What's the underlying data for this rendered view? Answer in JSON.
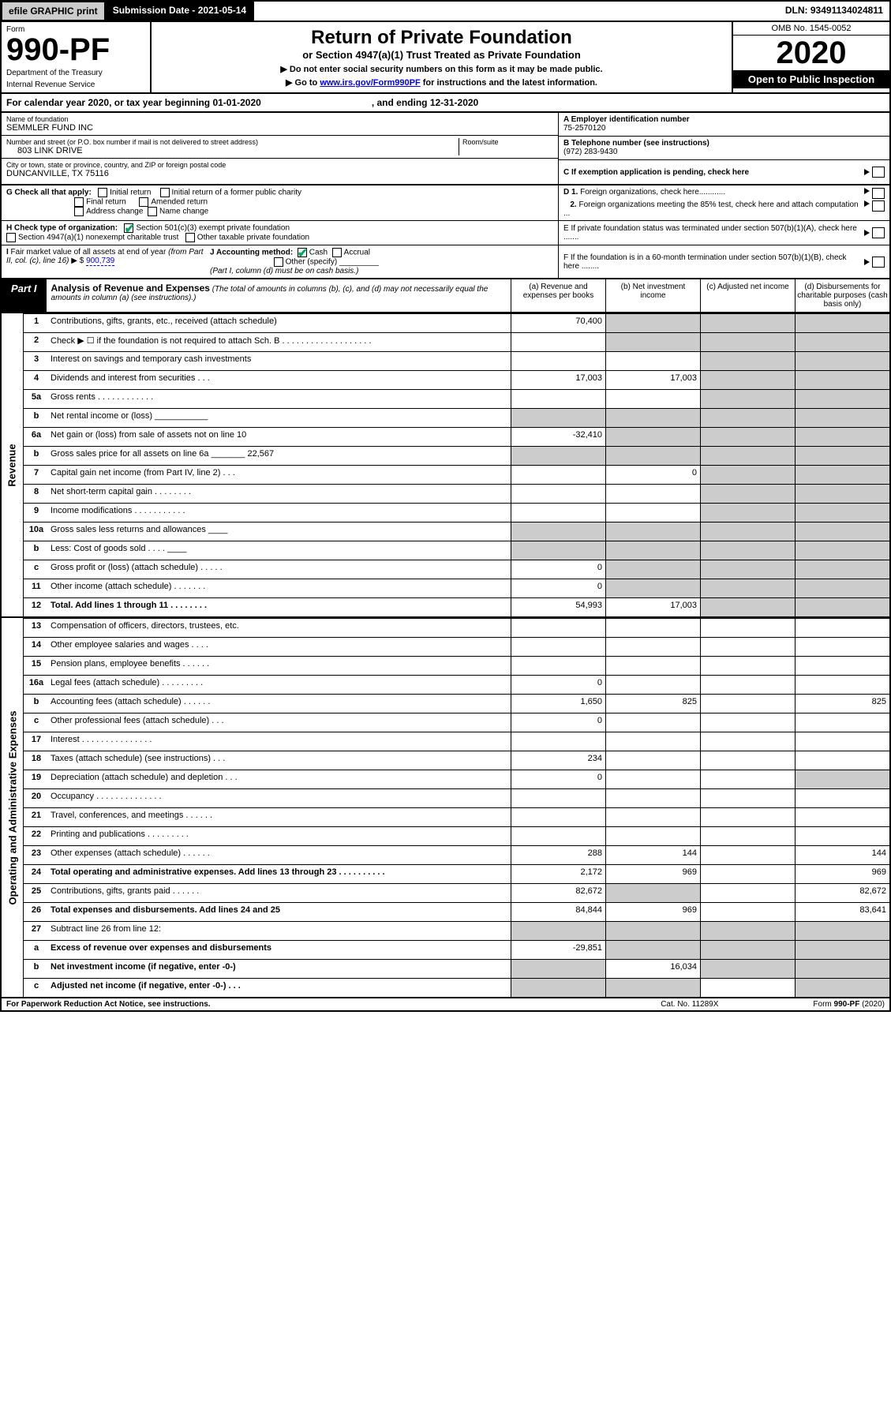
{
  "topbar": {
    "efile": "efile GRAPHIC print",
    "subdate_label": "Submission Date - 2021-05-14",
    "dln": "DLN: 93491134024811"
  },
  "header": {
    "form_word": "Form",
    "form_num": "990-PF",
    "dept": "Department of the Treasury",
    "irs": "Internal Revenue Service",
    "title": "Return of Private Foundation",
    "subtitle": "or Section 4947(a)(1) Trust Treated as Private Foundation",
    "note1": "▶ Do not enter social security numbers on this form as it may be made public.",
    "note2_pre": "▶ Go to ",
    "note2_link": "www.irs.gov/Form990PF",
    "note2_post": " for instructions and the latest information.",
    "omb": "OMB No. 1545-0052",
    "year": "2020",
    "open": "Open to Public Inspection"
  },
  "calyear": {
    "left": "For calendar year 2020, or tax year beginning 01-01-2020",
    "right": ", and ending 12-31-2020"
  },
  "id": {
    "name_lbl": "Name of foundation",
    "name": "SEMMLER FUND INC",
    "addr_lbl": "Number and street (or P.O. box number if mail is not delivered to street address)",
    "addr": "803 LINK DRIVE",
    "room_lbl": "Room/suite",
    "city_lbl": "City or town, state or province, country, and ZIP or foreign postal code",
    "city": "DUNCANVILLE, TX  75116",
    "ein_lbl": "A Employer identification number",
    "ein": "75-2570120",
    "tel_lbl": "B Telephone number (see instructions)",
    "tel": "(972) 283-9430",
    "c_lbl": "C If exemption application is pending, check here"
  },
  "checks": {
    "g": "G Check all that apply:",
    "initial": "Initial return",
    "initial_former": "Initial return of a former public charity",
    "final": "Final return",
    "amended": "Amended return",
    "addr_change": "Address change",
    "name_change": "Name change",
    "h": "H Check type of organization:",
    "sec501": "Section 501(c)(3) exempt private foundation",
    "sec4947": "Section 4947(a)(1) nonexempt charitable trust",
    "other_tax": "Other taxable private foundation",
    "d1": "D 1. Foreign organizations, check here............",
    "d2": "2. Foreign organizations meeting the 85% test, check here and attach computation ...",
    "e": "E  If private foundation status was terminated under section 507(b)(1)(A), check here .......",
    "i": "I Fair market value of all assets at end of year (from Part II, col. (c), line 16) ▶ $",
    "i_val": "900,739",
    "j": "J Accounting method:",
    "cash": "Cash",
    "accrual": "Accrual",
    "other_spec": "Other (specify)",
    "j_note": "(Part I, column (d) must be on cash basis.)",
    "f": "F  If the foundation is in a 60-month termination under section 507(b)(1)(B), check here ........"
  },
  "part1": {
    "tag": "Part I",
    "title": "Analysis of Revenue and Expenses",
    "note": "(The total of amounts in columns (b), (c), and (d) may not necessarily equal the amounts in column (a) (see instructions).)",
    "col_a": "(a)    Revenue and expenses per books",
    "col_b": "(b)   Net investment income",
    "col_c": "(c)   Adjusted net income",
    "col_d": "(d)   Disbursements for charitable purposes (cash basis only)"
  },
  "revenue_label": "Revenue",
  "expense_label": "Operating and Administrative Expenses",
  "rows": {
    "r1": {
      "n": "1",
      "d": "Contributions, gifts, grants, etc., received (attach schedule)",
      "a": "70,400"
    },
    "r2": {
      "n": "2",
      "d": "Check ▶ ☐ if the foundation is not required to attach Sch. B  . . . . . . . . . . . . . . . . . . ."
    },
    "r3": {
      "n": "3",
      "d": "Interest on savings and temporary cash investments"
    },
    "r4": {
      "n": "4",
      "d": "Dividends and interest from securities  .  .  .",
      "a": "17,003",
      "b": "17,003"
    },
    "r5a": {
      "n": "5a",
      "d": "Gross rents  . . . . . . . . . . . ."
    },
    "r5b": {
      "n": "b",
      "d": "Net rental income or (loss)  ___________"
    },
    "r6a": {
      "n": "6a",
      "d": "Net gain or (loss) from sale of assets not on line 10",
      "a": "-32,410"
    },
    "r6b": {
      "n": "b",
      "d": "Gross sales price for all assets on line 6a _______ 22,567"
    },
    "r7": {
      "n": "7",
      "d": "Capital gain net income (from Part IV, line 2)  .  .  .",
      "b": "0"
    },
    "r8": {
      "n": "8",
      "d": "Net short-term capital gain  . . . . . . . ."
    },
    "r9": {
      "n": "9",
      "d": "Income modifications  . . . . . . . . . . ."
    },
    "r10a": {
      "n": "10a",
      "d": "Gross sales less returns and allowances  ____"
    },
    "r10b": {
      "n": "b",
      "d": "Less: Cost of goods sold   .  .  .  .  ____"
    },
    "r10c": {
      "n": "c",
      "d": "Gross profit or (loss) (attach schedule)  .  .  .  .  .",
      "a": "0"
    },
    "r11": {
      "n": "11",
      "d": "Other income (attach schedule)  .  .  .  .  .  .  .",
      "a": "0"
    },
    "r12": {
      "n": "12",
      "d": "Total. Add lines 1 through 11  .  .  .  .  .  .  .  .",
      "a": "54,993",
      "b": "17,003"
    },
    "r13": {
      "n": "13",
      "d": "Compensation of officers, directors, trustees, etc."
    },
    "r14": {
      "n": "14",
      "d": "Other employee salaries and wages   .  .  .  ."
    },
    "r15": {
      "n": "15",
      "d": "Pension plans, employee benefits  .  .  .  .  .  ."
    },
    "r16a": {
      "n": "16a",
      "d": "Legal fees (attach schedule)  . . . . . . . . .",
      "a": "0"
    },
    "r16b": {
      "n": "b",
      "d": "Accounting fees (attach schedule)  .  .  .  .  .  .",
      "a": "1,650",
      "b": "825",
      "dd": "825"
    },
    "r16c": {
      "n": "c",
      "d": "Other professional fees (attach schedule)   .  .  .",
      "a": "0"
    },
    "r17": {
      "n": "17",
      "d": "Interest  . . . . . . . . . . . . . . ."
    },
    "r18": {
      "n": "18",
      "d": "Taxes (attach schedule) (see instructions)   .  .  .",
      "a": "234"
    },
    "r19": {
      "n": "19",
      "d": "Depreciation (attach schedule) and depletion  .  .  .",
      "a": "0"
    },
    "r20": {
      "n": "20",
      "d": "Occupancy  . . . . . . . . . . . . . ."
    },
    "r21": {
      "n": "21",
      "d": "Travel, conferences, and meetings  . . . . . ."
    },
    "r22": {
      "n": "22",
      "d": "Printing and publications  . . . . . . . . ."
    },
    "r23": {
      "n": "23",
      "d": "Other expenses (attach schedule)  .  .  .  .  .  .",
      "a": "288",
      "b": "144",
      "dd": "144"
    },
    "r24": {
      "n": "24",
      "d": "Total operating and administrative expenses. Add lines 13 through 23  .  .  .  .  .  .  .  .  .  .",
      "a": "2,172",
      "b": "969",
      "dd": "969"
    },
    "r25": {
      "n": "25",
      "d": "Contributions, gifts, grants paid   .  .  .  .  .  .",
      "a": "82,672",
      "dd": "82,672"
    },
    "r26": {
      "n": "26",
      "d": "Total expenses and disbursements. Add lines 24 and 25",
      "a": "84,844",
      "b": "969",
      "dd": "83,641"
    },
    "r27": {
      "n": "27",
      "d": "Subtract line 26 from line 12:"
    },
    "r27a": {
      "n": "a",
      "d": "Excess of revenue over expenses and disbursements",
      "a": "-29,851"
    },
    "r27b": {
      "n": "b",
      "d": "Net investment income (if negative, enter -0-)",
      "b": "16,034"
    },
    "r27c": {
      "n": "c",
      "d": "Adjusted net income (if negative, enter -0-)  .  .  ."
    }
  },
  "footer": {
    "left": "For Paperwork Reduction Act Notice, see instructions.",
    "mid": "Cat. No. 11289X",
    "right": "Form 990-PF (2020)"
  }
}
